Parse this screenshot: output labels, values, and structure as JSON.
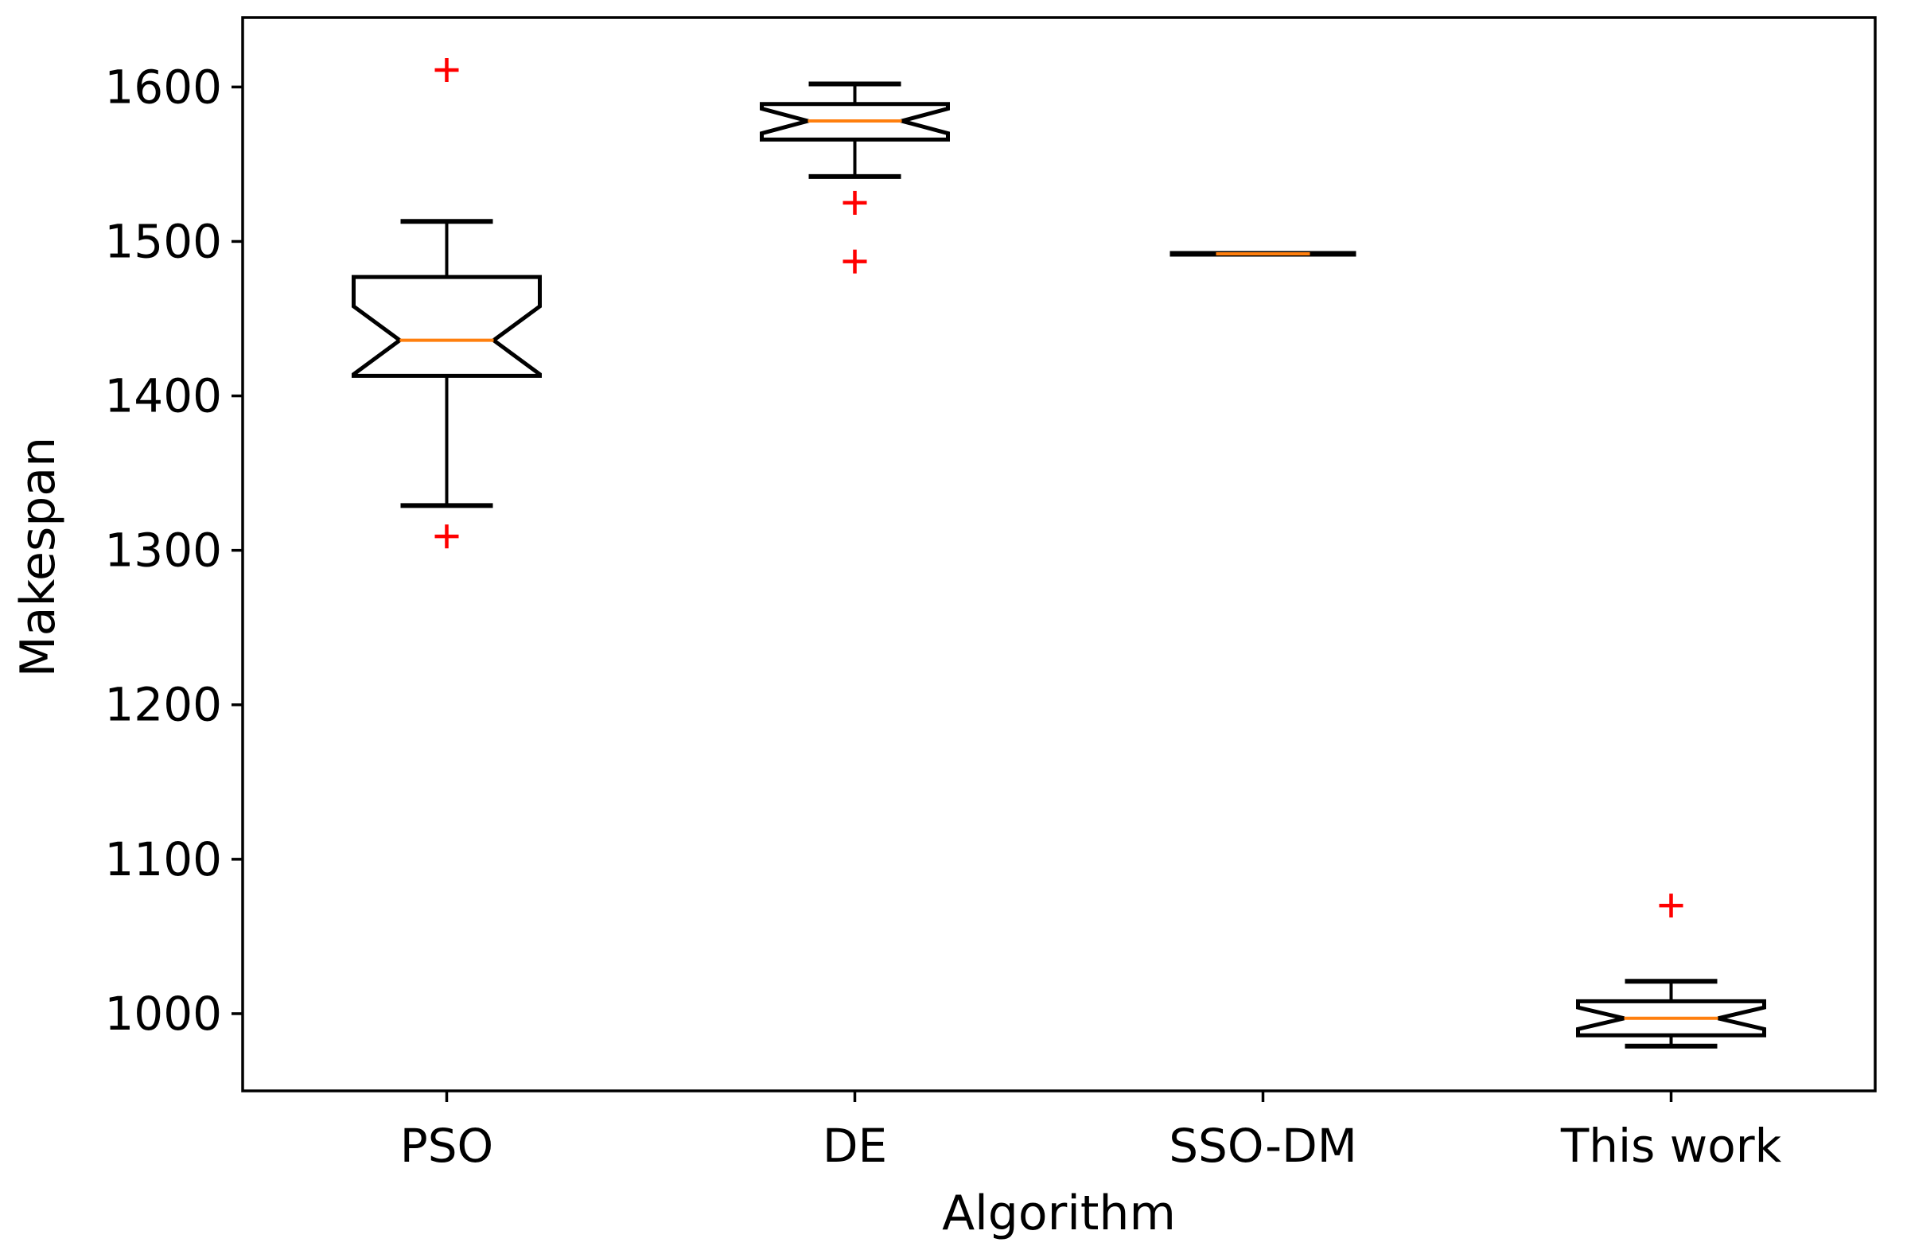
{
  "chart_data": {
    "type": "boxplot",
    "title": "",
    "xlabel": "Algorithm",
    "ylabel": "Makespan",
    "ylim": [
      950,
      1645
    ],
    "yticks": [
      1000,
      1100,
      1200,
      1300,
      1400,
      1500,
      1600
    ],
    "notched": true,
    "grid": false,
    "legend": "none",
    "colors": {
      "box": "#000000",
      "median": "#ff7f0e",
      "outlier": "#ff0000",
      "background": "#ffffff"
    },
    "boxes": [
      {
        "category": "PSO",
        "whisker_low": 1329,
        "q1": 1413,
        "median": 1436,
        "q3": 1477,
        "whisker_high": 1513,
        "notch_low": 1414,
        "notch_high": 1458,
        "outliers": [
          1611,
          1309
        ]
      },
      {
        "category": "DE",
        "whisker_low": 1542,
        "q1": 1566,
        "median": 1578,
        "q3": 1589,
        "whisker_high": 1602,
        "notch_low": 1570,
        "notch_high": 1586,
        "outliers": [
          1525,
          1487
        ]
      },
      {
        "category": "SSO-DM",
        "whisker_low": 1492,
        "q1": 1492,
        "median": 1492,
        "q3": 1492,
        "whisker_high": 1492,
        "notch_low": 1492,
        "notch_high": 1492,
        "outliers": []
      },
      {
        "category": "This work",
        "whisker_low": 979,
        "q1": 986,
        "median": 997,
        "q3": 1008,
        "whisker_high": 1021,
        "notch_low": 990,
        "notch_high": 1004,
        "outliers": [
          1070
        ]
      }
    ]
  }
}
